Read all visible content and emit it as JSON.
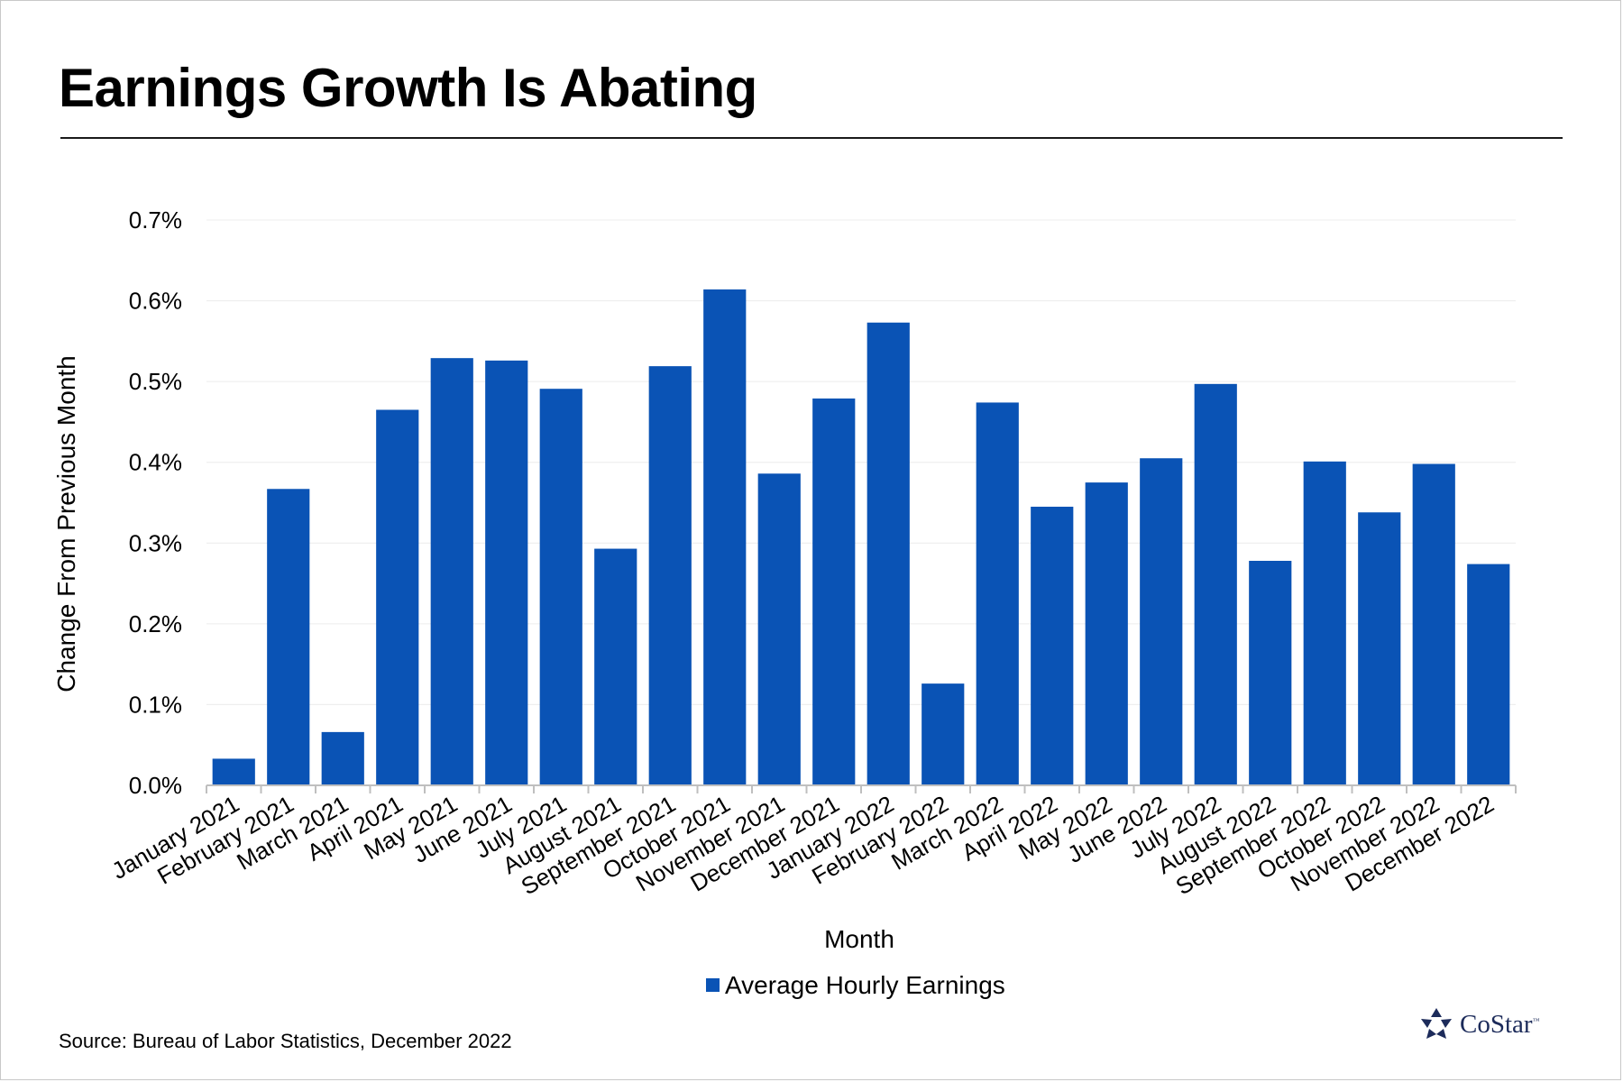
{
  "slide": {
    "title": "Earnings Growth Is Abating",
    "source": "Source: Bureau of Labor Statistics, December 2022",
    "logo": {
      "text": "CoStar",
      "trademark": "™",
      "icon": "costar-star-icon",
      "color": "#1c2b5a"
    }
  },
  "chart_data": {
    "type": "bar",
    "title": "",
    "xlabel": "Month",
    "ylabel": "Change From Previous Month",
    "ylim": [
      0,
      0.7
    ],
    "ytick_labels": [
      "0.0%",
      "0.1%",
      "0.2%",
      "0.3%",
      "0.4%",
      "0.5%",
      "0.6%",
      "0.7%"
    ],
    "grid": true,
    "legend": "bottom",
    "categories": [
      "January 2021",
      "February 2021",
      "March 2021",
      "April 2021",
      "May 2021",
      "June 2021",
      "July 2021",
      "August 2021",
      "September 2021",
      "October 2021",
      "November 2021",
      "December 2021",
      "January 2022",
      "February 2022",
      "March 2022",
      "April 2022",
      "May 2022",
      "June 2022",
      "July 2022",
      "August 2022",
      "September 2022",
      "October 2022",
      "November 2022",
      "December 2022"
    ],
    "series": [
      {
        "name": "Average Hourly Earnings",
        "color": "#0a53b5",
        "values": [
          0.033,
          0.367,
          0.066,
          0.465,
          0.529,
          0.526,
          0.491,
          0.293,
          0.519,
          0.614,
          0.386,
          0.479,
          0.573,
          0.126,
          0.474,
          0.345,
          0.375,
          0.405,
          0.497,
          0.278,
          0.401,
          0.338,
          0.398,
          0.274
        ]
      }
    ]
  }
}
